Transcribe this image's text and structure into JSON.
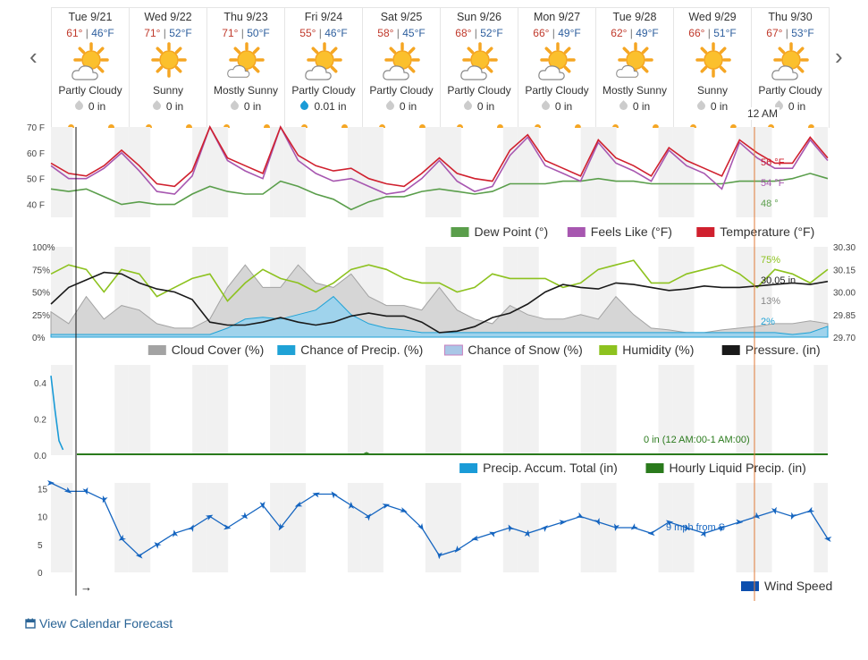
{
  "nav": {
    "prev": "‹",
    "next": "›",
    "timeline_arrow": "→"
  },
  "days": [
    {
      "label": "Tue 9/21",
      "hi": "61°",
      "lo": "46°F",
      "condition": "Partly Cloudy",
      "precip": "0 in",
      "icon": "partly-cloudy-icon",
      "rain": false
    },
    {
      "label": "Wed 9/22",
      "hi": "71°",
      "lo": "52°F",
      "condition": "Sunny",
      "precip": "0 in",
      "icon": "sunny-icon",
      "rain": false
    },
    {
      "label": "Thu 9/23",
      "hi": "71°",
      "lo": "50°F",
      "condition": "Mostly Sunny",
      "precip": "0 in",
      "icon": "mostly-sunny-icon",
      "rain": false
    },
    {
      "label": "Fri 9/24",
      "hi": "55°",
      "lo": "46°F",
      "condition": "Partly Cloudy",
      "precip": "0.01 in",
      "icon": "partly-cloudy-icon",
      "rain": true
    },
    {
      "label": "Sat 9/25",
      "hi": "58°",
      "lo": "45°F",
      "condition": "Partly Cloudy",
      "precip": "0 in",
      "icon": "partly-cloudy-icon",
      "rain": false
    },
    {
      "label": "Sun 9/26",
      "hi": "68°",
      "lo": "52°F",
      "condition": "Partly Cloudy",
      "precip": "0 in",
      "icon": "partly-cloudy-icon",
      "rain": false
    },
    {
      "label": "Mon 9/27",
      "hi": "66°",
      "lo": "49°F",
      "condition": "Partly Cloudy",
      "precip": "0 in",
      "icon": "partly-cloudy-icon",
      "rain": false
    },
    {
      "label": "Tue 9/28",
      "hi": "62°",
      "lo": "49°F",
      "condition": "Mostly Sunny",
      "precip": "0 in",
      "icon": "mostly-sunny-icon",
      "rain": false
    },
    {
      "label": "Wed 9/29",
      "hi": "66°",
      "lo": "51°F",
      "condition": "Sunny",
      "precip": "0 in",
      "icon": "sunny-icon",
      "rain": false
    },
    {
      "label": "Thu 9/30",
      "hi": "67°",
      "lo": "53°F",
      "condition": "Partly Cloudy",
      "precip": "0 in",
      "icon": "partly-cloudy-icon",
      "rain": false
    }
  ],
  "hover": {
    "time": "12 AM",
    "temperature": "56 °F",
    "feels_like": "54 °F",
    "dew_point": "48 °",
    "humidity": "75%",
    "pressure": "30.05 in",
    "cloud_cover": "13%",
    "precip_chance": "2%",
    "precip_total": "0 in (12 AM:00-1 AM:00)",
    "wind": "9 mph from S"
  },
  "colors": {
    "temperature": "#d0202e",
    "feels_like": "#a757b0",
    "dew_point": "#5a9e4b",
    "cloud_cover": "#a3a3a3",
    "precip_chance": "#1fa2d6",
    "snow_chance": "#a9c6e6",
    "humidity": "#8dc21f",
    "pressure": "#1a1a1a",
    "precip_accum": "#1a9bd7",
    "hourly_liquid": "#2a7a1c",
    "wind": "#1565c0",
    "hover_line": "#e07b39"
  },
  "charts": {
    "temperature": {
      "y_ticks": [
        "70 F",
        "60 F",
        "50 F",
        "40 F"
      ],
      "legend": [
        "Dew Point (°)",
        "Feels Like (°F)",
        "Temperature (°F)"
      ]
    },
    "sky": {
      "y_ticks_left": [
        "100%",
        "75%",
        "50%",
        "25%",
        "0%"
      ],
      "y_ticks_right": [
        "30.30",
        "30.15",
        "30.00",
        "29.85",
        "29.70"
      ],
      "legend": [
        "Cloud Cover (%)",
        "Chance of Precip. (%)",
        "Chance of Snow (%)",
        "Humidity (%)",
        "Pressure. (in)"
      ]
    },
    "precip": {
      "y_ticks": [
        "0.4",
        "0.2",
        "0.0"
      ],
      "legend": [
        "Precip. Accum. Total (in)",
        "Hourly Liquid Precip. (in)"
      ]
    },
    "wind": {
      "y_ticks": [
        "15",
        "10",
        "5",
        "0"
      ],
      "legend": [
        "Wind Speed"
      ]
    }
  },
  "chart_data": [
    {
      "type": "line",
      "title": "",
      "xlabel": "",
      "ylabel": "",
      "ylim": [
        35,
        70
      ],
      "series": [
        {
          "name": "Temperature (°F)",
          "values": [
            56,
            52,
            51,
            55,
            61,
            55,
            48,
            47,
            53,
            70,
            58,
            55,
            52,
            70,
            59,
            55,
            53,
            54,
            50,
            48,
            47,
            52,
            58,
            52,
            50,
            49,
            61,
            67,
            57,
            54,
            51,
            65,
            58,
            55,
            51,
            62,
            57,
            54,
            51,
            65,
            60,
            56,
            56,
            66,
            58
          ]
        },
        {
          "name": "Feels Like (°F)",
          "values": [
            55,
            50,
            50,
            54,
            60,
            53,
            45,
            44,
            51,
            70,
            57,
            53,
            50,
            70,
            57,
            52,
            49,
            50,
            47,
            44,
            45,
            50,
            57,
            49,
            45,
            47,
            59,
            66,
            55,
            52,
            49,
            64,
            56,
            53,
            49,
            61,
            55,
            52,
            46,
            64,
            58,
            54,
            54,
            65,
            57
          ]
        },
        {
          "name": "Dew Point (°)",
          "values": [
            46,
            45,
            46,
            43,
            40,
            41,
            40,
            40,
            44,
            47,
            45,
            44,
            44,
            49,
            47,
            44,
            42,
            38,
            41,
            43,
            43,
            45,
            46,
            45,
            44,
            45,
            48,
            48,
            48,
            49,
            49,
            50,
            49,
            49,
            48,
            48,
            48,
            48,
            48,
            49,
            49,
            49,
            50,
            52,
            50
          ]
        }
      ]
    },
    {
      "type": "area",
      "title": "",
      "xlabel": "",
      "ylabel": "",
      "ylim": [
        0,
        100
      ],
      "y2lim": [
        29.7,
        30.3
      ],
      "series": [
        {
          "name": "Cloud Cover (%)",
          "values": [
            28,
            15,
            45,
            20,
            35,
            30,
            15,
            10,
            10,
            20,
            55,
            80,
            55,
            55,
            80,
            60,
            55,
            70,
            45,
            35,
            35,
            30,
            55,
            30,
            20,
            15,
            35,
            25,
            20,
            20,
            25,
            20,
            45,
            25,
            10,
            8,
            5,
            5,
            8,
            10,
            12,
            15,
            15,
            18,
            15
          ]
        },
        {
          "name": "Chance of Precip. (%)",
          "values": [
            3,
            3,
            3,
            3,
            3,
            3,
            3,
            3,
            3,
            3,
            10,
            20,
            22,
            20,
            25,
            30,
            45,
            25,
            15,
            10,
            8,
            5,
            5,
            5,
            5,
            5,
            5,
            5,
            5,
            5,
            5,
            5,
            5,
            5,
            5,
            5,
            5,
            5,
            5,
            5,
            5,
            5,
            3,
            5,
            12
          ]
        },
        {
          "name": "Humidity (%)",
          "values": [
            70,
            80,
            75,
            50,
            75,
            70,
            45,
            55,
            65,
            70,
            40,
            60,
            75,
            65,
            60,
            50,
            60,
            75,
            80,
            75,
            65,
            60,
            60,
            50,
            55,
            70,
            65,
            65,
            65,
            55,
            60,
            75,
            80,
            85,
            60,
            60,
            70,
            75,
            80,
            70,
            55,
            75,
            70,
            60,
            75
          ]
        },
        {
          "name": "Pressure. (in)",
          "values": [
            29.92,
            30.03,
            30.08,
            30.13,
            30.12,
            30.06,
            30.02,
            30.0,
            29.95,
            29.8,
            29.78,
            29.78,
            29.8,
            29.83,
            29.8,
            29.78,
            29.8,
            29.84,
            29.86,
            29.84,
            29.84,
            29.8,
            29.73,
            29.74,
            29.77,
            29.83,
            29.86,
            29.92,
            30.0,
            30.05,
            30.03,
            30.02,
            30.06,
            30.05,
            30.03,
            30.01,
            30.02,
            30.04,
            30.03,
            30.03,
            30.04,
            30.05,
            30.06,
            30.05,
            30.07
          ]
        }
      ]
    },
    {
      "type": "line",
      "title": "",
      "xlabel": "",
      "ylabel": "",
      "ylim": [
        0,
        0.5
      ],
      "series": [
        {
          "name": "Precip. Accum. Total (in)",
          "values": [
            0.44,
            0.25,
            0.08,
            0.03
          ]
        },
        {
          "name": "Hourly Liquid Precip. (in)",
          "values": [
            0,
            0,
            0,
            0,
            0,
            0,
            0,
            0,
            0,
            0,
            0,
            0,
            0,
            0,
            0,
            0,
            0,
            0,
            0,
            0,
            0,
            0,
            0,
            0,
            0,
            0,
            0,
            0,
            0,
            0,
            0,
            0,
            0,
            0,
            0,
            0,
            0,
            0,
            0,
            0,
            0,
            0,
            0,
            0,
            0
          ]
        }
      ]
    },
    {
      "type": "line",
      "title": "",
      "xlabel": "",
      "ylabel": "",
      "ylim": [
        0,
        16
      ],
      "series": [
        {
          "name": "Wind Speed",
          "values": [
            16,
            14.5,
            14.5,
            13,
            6,
            3,
            5,
            7,
            8,
            10,
            8,
            10,
            12,
            8,
            12,
            14,
            14,
            12,
            10,
            12,
            11,
            8,
            3,
            4,
            6,
            7,
            8,
            7,
            8,
            9,
            10,
            9,
            8,
            8,
            7,
            9,
            8,
            7,
            8,
            9,
            10,
            11,
            10,
            11,
            6
          ]
        }
      ]
    }
  ]
}
